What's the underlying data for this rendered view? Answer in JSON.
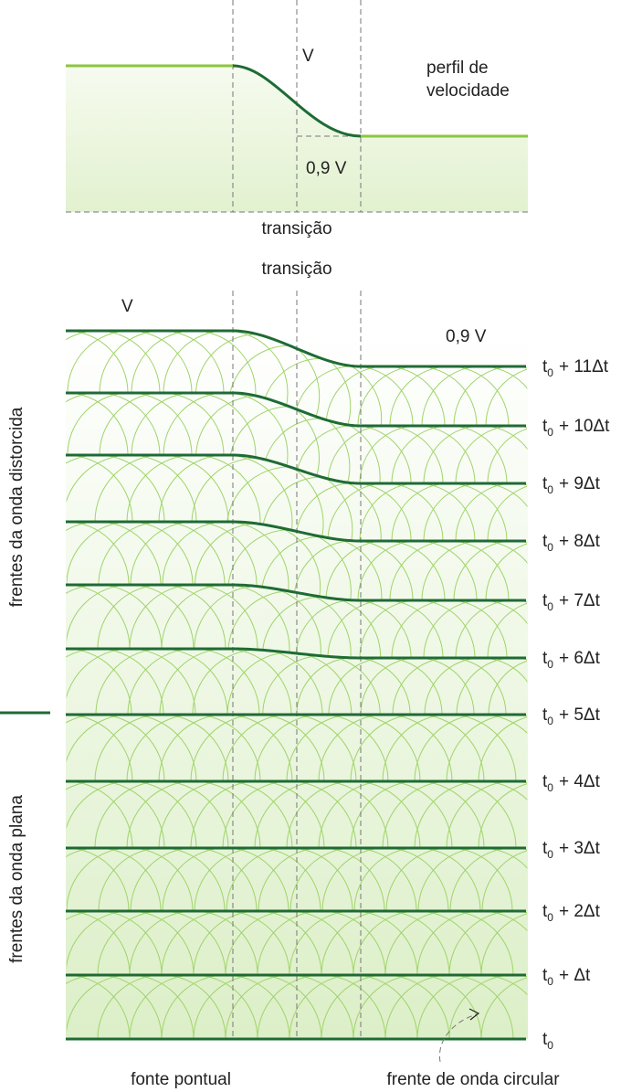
{
  "profile": {
    "v_label": "V",
    "title": [
      "perfil de",
      "velocidade"
    ],
    "slow_label": "0,9 V",
    "transition": "transição"
  },
  "fronts": {
    "transition": "transição",
    "v_label": "V",
    "slow_label": "0,9 V",
    "times": [
      {
        "base": "t",
        "sub": "0",
        "rest": "+ 11Δt"
      },
      {
        "base": "t",
        "sub": "0",
        "rest": "+ 10Δt"
      },
      {
        "base": "t",
        "sub": "0",
        "rest": "+ 9Δt"
      },
      {
        "base": "t",
        "sub": "0",
        "rest": "+ 8Δt"
      },
      {
        "base": "t",
        "sub": "0",
        "rest": "+ 7Δt"
      },
      {
        "base": "t",
        "sub": "0",
        "rest": "+ 6Δt"
      },
      {
        "base": "t",
        "sub": "0",
        "rest": "+ 5Δt"
      },
      {
        "base": "t",
        "sub": "0",
        "rest": "+ 4Δt"
      },
      {
        "base": "t",
        "sub": "0",
        "rest": "+ 3Δt"
      },
      {
        "base": "t",
        "sub": "0",
        "rest": "+ 2Δt"
      },
      {
        "base": "t",
        "sub": "0",
        "rest": "+ Δt"
      },
      {
        "base": "t",
        "sub": "0"
      }
    ],
    "group_distorted": "frentes da onda distorcida",
    "group_plane": "frentes da onda plana",
    "source": "fonte pontual",
    "circular": "frente de onda circular"
  }
}
